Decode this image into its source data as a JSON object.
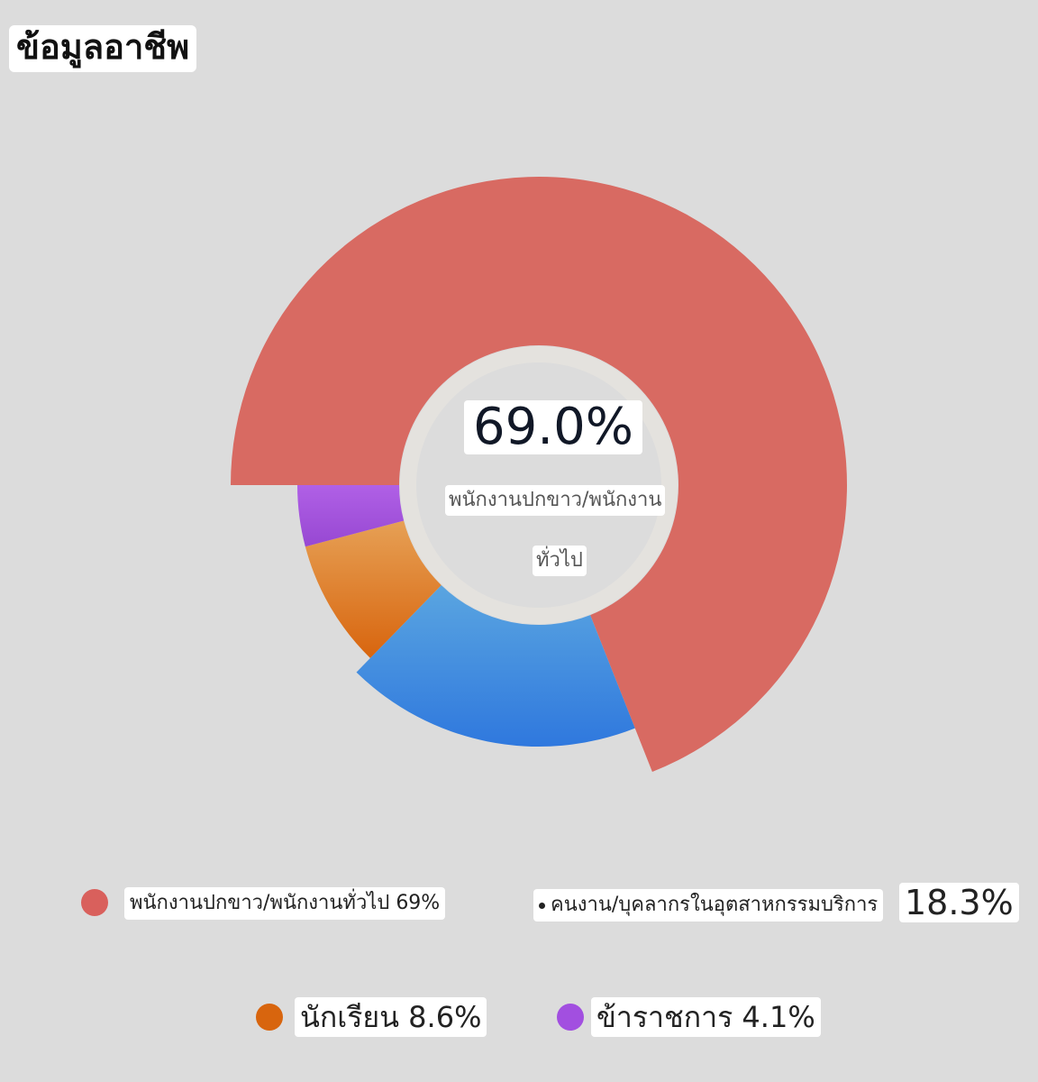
{
  "title": "ข้อมูลอาชีพ",
  "chart_data": {
    "type": "pie",
    "donut": true,
    "categories": [
      "พนักงานปกขาว/พนักงานทั่วไป",
      "คนงาน/บุคลากรในอุตสาหกรรมบริการ",
      "นักเรียน",
      "ข้าราชการ"
    ],
    "values": [
      69.0,
      18.3,
      8.6,
      4.1
    ],
    "colors": [
      "#d86a62",
      "#3d86df",
      "#e07a2a",
      "#9a4fd8"
    ],
    "highlight": {
      "value_text": "69.0%",
      "label_line1": "พนักงานปกขาว/พนักงาน",
      "label_line2": "ทั่วไป"
    },
    "legend_placement": "bottom",
    "legend": [
      {
        "text": "พนักงานปกขาว/พนักงานทั่วไป 69%",
        "color": "#d9605c"
      },
      {
        "text": "คนงาน/บุคลากรในอุตสาหกรรมบริการ",
        "value_text": "18.3%"
      },
      {
        "text": "นักเรียน 8.6%",
        "color": "#d8650e"
      },
      {
        "text": "ข้าราชการ 4.1%",
        "color": "#a24fe0"
      }
    ]
  }
}
